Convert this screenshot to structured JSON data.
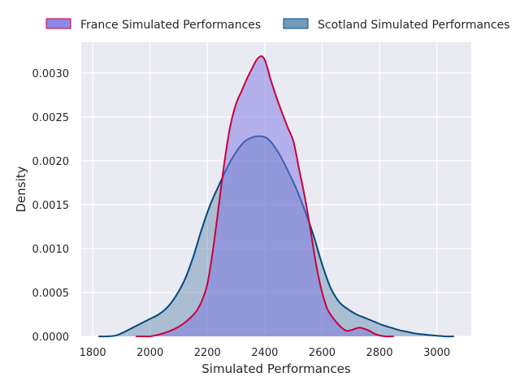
{
  "chart_data": {
    "type": "area",
    "title": "",
    "xlabel": "Simulated Performances",
    "ylabel": "Density",
    "xlim": [
      1760,
      3120
    ],
    "ylim": [
      0,
      0.00335
    ],
    "xticks": [
      1800,
      2000,
      2200,
      2400,
      2600,
      2800,
      3000
    ],
    "xtick_labels": [
      "1800",
      "2000",
      "2200",
      "2400",
      "2600",
      "2800",
      "3000"
    ],
    "yticks": [
      0,
      0.0005,
      0.001,
      0.0015,
      0.002,
      0.0025,
      0.003
    ],
    "ytick_labels": [
      "0.0000",
      "0.0005",
      "0.0010",
      "0.0015",
      "0.0020",
      "0.0025",
      "0.0030"
    ],
    "grid": true,
    "legend_placement": "top, outside plot",
    "series": [
      {
        "name": "France Simulated Performances",
        "line_color": "#c8003c",
        "fill_color": "#7b73e3",
        "fill_opacity": 0.5,
        "x": [
          1950,
          1980,
          2000,
          2030,
          2060,
          2100,
          2130,
          2160,
          2180,
          2200,
          2220,
          2240,
          2260,
          2280,
          2300,
          2320,
          2340,
          2360,
          2370,
          2380,
          2390,
          2400,
          2410,
          2420,
          2440,
          2460,
          2480,
          2500,
          2520,
          2540,
          2560,
          2580,
          2600,
          2620,
          2650,
          2680,
          2700,
          2730,
          2760,
          2790,
          2820,
          2850
        ],
        "y": [
          0,
          0,
          0,
          2e-05,
          5e-05,
          0.00011,
          0.00018,
          0.00028,
          0.0004,
          0.0006,
          0.001,
          0.0015,
          0.002,
          0.0024,
          0.00265,
          0.0028,
          0.00295,
          0.00308,
          0.00314,
          0.00318,
          0.00319,
          0.00315,
          0.00305,
          0.00293,
          0.00273,
          0.00255,
          0.00238,
          0.00222,
          0.0019,
          0.00158,
          0.0012,
          0.0008,
          0.0005,
          0.0003,
          0.00016,
          7e-05,
          7e-05,
          0.0001,
          7e-05,
          2e-05,
          0,
          0
        ]
      },
      {
        "name": "Scotland Simulated Performances",
        "line_color": "#004a80",
        "fill_color": "#5d88ad",
        "fill_opacity": 0.45,
        "x": [
          1820,
          1850,
          1880,
          1910,
          1940,
          1970,
          2000,
          2030,
          2060,
          2090,
          2120,
          2150,
          2180,
          2210,
          2240,
          2270,
          2300,
          2330,
          2360,
          2380,
          2400,
          2420,
          2450,
          2480,
          2510,
          2540,
          2570,
          2600,
          2630,
          2660,
          2690,
          2720,
          2750,
          2780,
          2810,
          2840,
          2870,
          2900,
          2930,
          2960,
          2990,
          3030,
          3060
        ],
        "y": [
          0,
          0,
          1e-05,
          5e-05,
          0.0001,
          0.00015,
          0.0002,
          0.00025,
          0.00033,
          0.00046,
          0.00064,
          0.0009,
          0.00122,
          0.0015,
          0.00172,
          0.00193,
          0.0021,
          0.00222,
          0.00227,
          0.00228,
          0.00227,
          0.00222,
          0.00208,
          0.00189,
          0.00168,
          0.00143,
          0.00115,
          0.00082,
          0.00055,
          0.00039,
          0.00031,
          0.00025,
          0.00021,
          0.00017,
          0.00013,
          0.0001,
          7e-05,
          5e-05,
          3e-05,
          2e-05,
          1e-05,
          0,
          0
        ]
      }
    ]
  }
}
